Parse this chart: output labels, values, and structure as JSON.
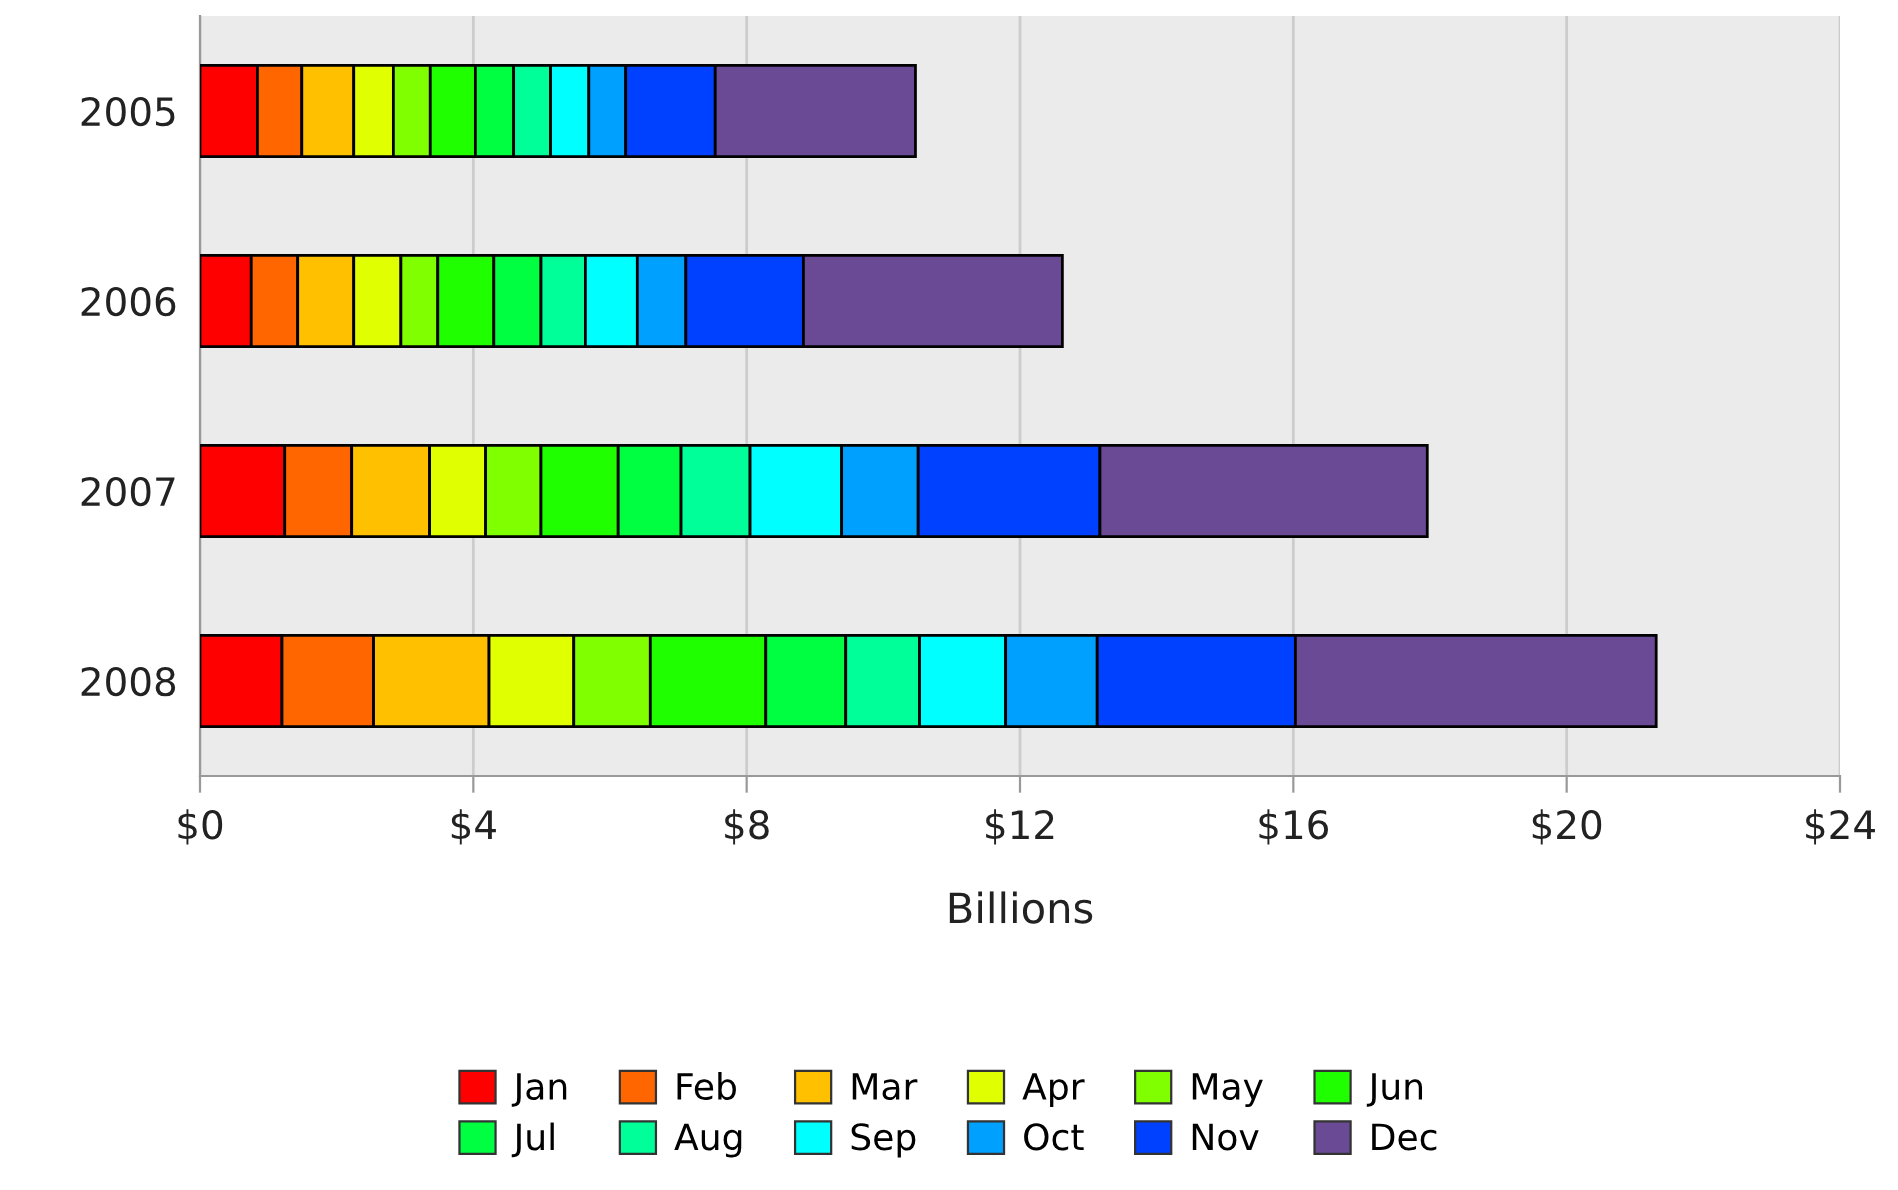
{
  "chart_data": {
    "type": "bar",
    "orientation": "horizontal",
    "stacked": true,
    "categories": [
      "2005",
      "2006",
      "2007",
      "2008"
    ],
    "xlabel": "Billions",
    "xlim": [
      0,
      24
    ],
    "xticks": [
      {
        "value": 0,
        "label": "$0"
      },
      {
        "value": 4,
        "label": "$4"
      },
      {
        "value": 8,
        "label": "$8"
      },
      {
        "value": 12,
        "label": "$12"
      },
      {
        "value": 16,
        "label": "$16"
      },
      {
        "value": 20,
        "label": "$20"
      },
      {
        "value": 24,
        "label": "$24"
      }
    ],
    "grid": "x",
    "legend": "bottom",
    "series": [
      {
        "name": "Jan",
        "color": "#ff0000",
        "values": [
          0.84,
          0.75,
          1.24,
          1.2
        ]
      },
      {
        "name": "Feb",
        "color": "#ff6600",
        "values": [
          0.65,
          0.68,
          0.98,
          1.34
        ]
      },
      {
        "name": "Mar",
        "color": "#ffc000",
        "values": [
          0.76,
          0.82,
          1.14,
          1.69
        ]
      },
      {
        "name": "Apr",
        "color": "#e0ff00",
        "values": [
          0.58,
          0.69,
          0.82,
          1.24
        ]
      },
      {
        "name": "May",
        "color": "#80ff00",
        "values": [
          0.54,
          0.54,
          0.81,
          1.12
        ]
      },
      {
        "name": "Jun",
        "color": "#20ff00",
        "values": [
          0.66,
          0.82,
          1.13,
          1.69
        ]
      },
      {
        "name": "Jul",
        "color": "#00ff40",
        "values": [
          0.56,
          0.69,
          0.92,
          1.17
        ]
      },
      {
        "name": "Aug",
        "color": "#00ff99",
        "values": [
          0.54,
          0.65,
          1.01,
          1.08
        ]
      },
      {
        "name": "Sep",
        "color": "#00ffff",
        "values": [
          0.56,
          0.76,
          1.34,
          1.26
        ]
      },
      {
        "name": "Oct",
        "color": "#00a0ff",
        "values": [
          0.54,
          0.71,
          1.12,
          1.34
        ]
      },
      {
        "name": "Nov",
        "color": "#0040ff",
        "values": [
          1.31,
          1.72,
          2.66,
          2.9
        ]
      },
      {
        "name": "Dec",
        "color": "#6a4a94",
        "values": [
          2.93,
          3.79,
          4.79,
          5.28
        ]
      }
    ]
  }
}
